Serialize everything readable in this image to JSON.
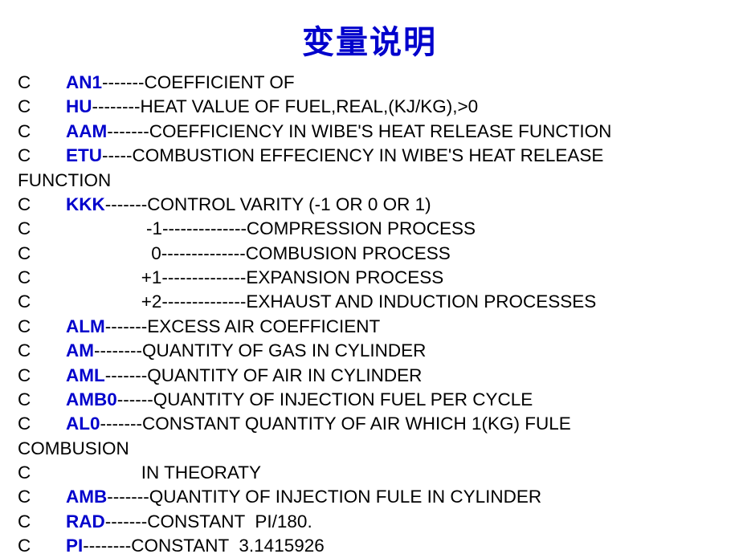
{
  "title": "变量说明",
  "title_color": "#0000cc",
  "title_fontsize": 40,
  "body_fontsize": 22.5,
  "text_color": "#000000",
  "keyword_color": "#0000cc",
  "background_color": "#ffffff",
  "lines": [
    {
      "prefix": "C       ",
      "kw": "AN1",
      "rest": "-------COEFFICIENT OF"
    },
    {
      "prefix": "C       ",
      "kw": "HU",
      "rest": "--------HEAT VALUE OF FUEL,REAL,(KJ/KG),>0"
    },
    {
      "prefix": "C       ",
      "kw": "AAM",
      "rest": "-------COEFFICIENCY IN WIBE'S HEAT RELEASE FUNCTION"
    },
    {
      "prefix": "C       ",
      "kw": "ETU",
      "rest": "-----COMBUSTION EFFECIENCY IN WIBE'S HEAT RELEASE"
    },
    {
      "prefix": "FUNCTION",
      "kw": "",
      "rest": ""
    },
    {
      "prefix": "C       ",
      "kw": "KKK",
      "rest": "-------CONTROL VARITY (-1 OR 0 OR 1)"
    },
    {
      "prefix": "C                       -1--------------COMPRESSION PROCESS",
      "kw": "",
      "rest": ""
    },
    {
      "prefix": "C                        0--------------COMBUSION PROCESS",
      "kw": "",
      "rest": ""
    },
    {
      "prefix": "C                      +1--------------EXPANSION PROCESS",
      "kw": "",
      "rest": ""
    },
    {
      "prefix": "C                      +2--------------EXHAUST AND INDUCTION PROCESSES",
      "kw": "",
      "rest": ""
    },
    {
      "prefix": "C       ",
      "kw": "ALM",
      "rest": "-------EXCESS AIR COEFFICIENT"
    },
    {
      "prefix": "C       ",
      "kw": "AM",
      "rest": "--------QUANTITY OF GAS IN CYLINDER"
    },
    {
      "prefix": "C       ",
      "kw": "AML",
      "rest": "-------QUANTITY OF AIR IN CYLINDER"
    },
    {
      "prefix": "C       ",
      "kw": "AMB0",
      "rest": "------QUANTITY OF INJECTION FUEL PER CYCLE"
    },
    {
      "prefix": "C       ",
      "kw": "AL0",
      "rest": "-------CONSTANT QUANTITY OF AIR WHICH 1(KG) FULE"
    },
    {
      "prefix": "COMBUSION",
      "kw": "",
      "rest": ""
    },
    {
      "prefix": "C                      IN THEORATY",
      "kw": "",
      "rest": ""
    },
    {
      "prefix": "C       ",
      "kw": "AMB",
      "rest": "-------QUANTITY OF INJECTION FULE IN CYLINDER"
    },
    {
      "prefix": "C       ",
      "kw": "RAD",
      "rest": "-------CONSTANT  PI/180."
    },
    {
      "prefix": "C       ",
      "kw": "PI",
      "rest": "--------CONSTANT  3.1415926"
    }
  ]
}
